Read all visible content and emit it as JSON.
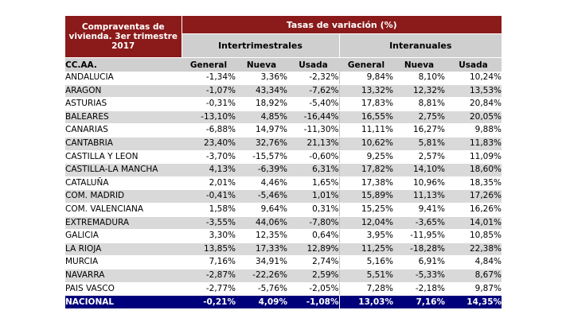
{
  "header": {
    "title": "Compraventas de vivienda. 3er trimestre 2017",
    "tasas": "Tasas de variación (%)",
    "intertrimestrales": "Intertrimestrales",
    "interanuales": "Interanuales"
  },
  "columns": [
    "CC.AA.",
    "General",
    "Nueva",
    "Usada",
    "General",
    "Nueva",
    "Usada"
  ],
  "rows": [
    [
      "ANDALUCIA",
      "-1,34%",
      "3,36%",
      "-2,32%",
      "9,84%",
      "8,10%",
      "10,24%"
    ],
    [
      "ARAGON",
      "-1,07%",
      "43,34%",
      "-7,62%",
      "13,32%",
      "12,32%",
      "13,53%"
    ],
    [
      "ASTURIAS",
      "-0,31%",
      "18,92%",
      "-5,40%",
      "17,83%",
      "8,81%",
      "20,84%"
    ],
    [
      "BALEARES",
      "-13,10%",
      "4,85%",
      "-16,44%",
      "16,55%",
      "2,75%",
      "20,05%"
    ],
    [
      "CANARIAS",
      "-6,88%",
      "14,97%",
      "-11,30%",
      "11,11%",
      "16,27%",
      "9,88%"
    ],
    [
      "CANTABRIA",
      "23,40%",
      "32,76%",
      "21,13%",
      "10,62%",
      "5,81%",
      "11,83%"
    ],
    [
      "CASTILLA Y LEON",
      "-3,70%",
      "-15,57%",
      "-0,60%",
      "9,25%",
      "2,57%",
      "11,09%"
    ],
    [
      "CASTILLA-LA MANCHA",
      "4,13%",
      "-6,39%",
      "6,31%",
      "17,82%",
      "14,10%",
      "18,60%"
    ],
    [
      "CATALUÑA",
      "2,01%",
      "4,46%",
      "1,65%",
      "17,38%",
      "10,96%",
      "18,35%"
    ],
    [
      "COM. MADRID",
      "-0,41%",
      "-5,46%",
      "1,01%",
      "15,89%",
      "11,13%",
      "17,26%"
    ],
    [
      "COM. VALENCIANA",
      "1,58%",
      "9,64%",
      "0,31%",
      "15,25%",
      "9,41%",
      "16,26%"
    ],
    [
      "EXTREMADURA",
      "-3,55%",
      "44,06%",
      "-7,80%",
      "12,04%",
      "-3,65%",
      "14,01%"
    ],
    [
      "GALICIA",
      "3,30%",
      "12,35%",
      "0,64%",
      "3,95%",
      "-11,95%",
      "10,85%"
    ],
    [
      "LA RIOJA",
      "13,85%",
      "17,33%",
      "12,89%",
      "11,25%",
      "-18,28%",
      "22,38%"
    ],
    [
      "MURCIA",
      "7,16%",
      "34,91%",
      "2,74%",
      "5,16%",
      "6,91%",
      "4,84%"
    ],
    [
      "NAVARRA",
      "-2,87%",
      "-22,26%",
      "2,59%",
      "5,51%",
      "-5,33%",
      "8,67%"
    ],
    [
      "PAIS VASCO",
      "-2,77%",
      "-5,76%",
      "-2,05%",
      "7,28%",
      "-2,18%",
      "9,87%"
    ]
  ],
  "total": [
    "NACIONAL",
    "-0,21%",
    "4,09%",
    "-1,08%",
    "13,03%",
    "7,16%",
    "14,35%"
  ]
}
